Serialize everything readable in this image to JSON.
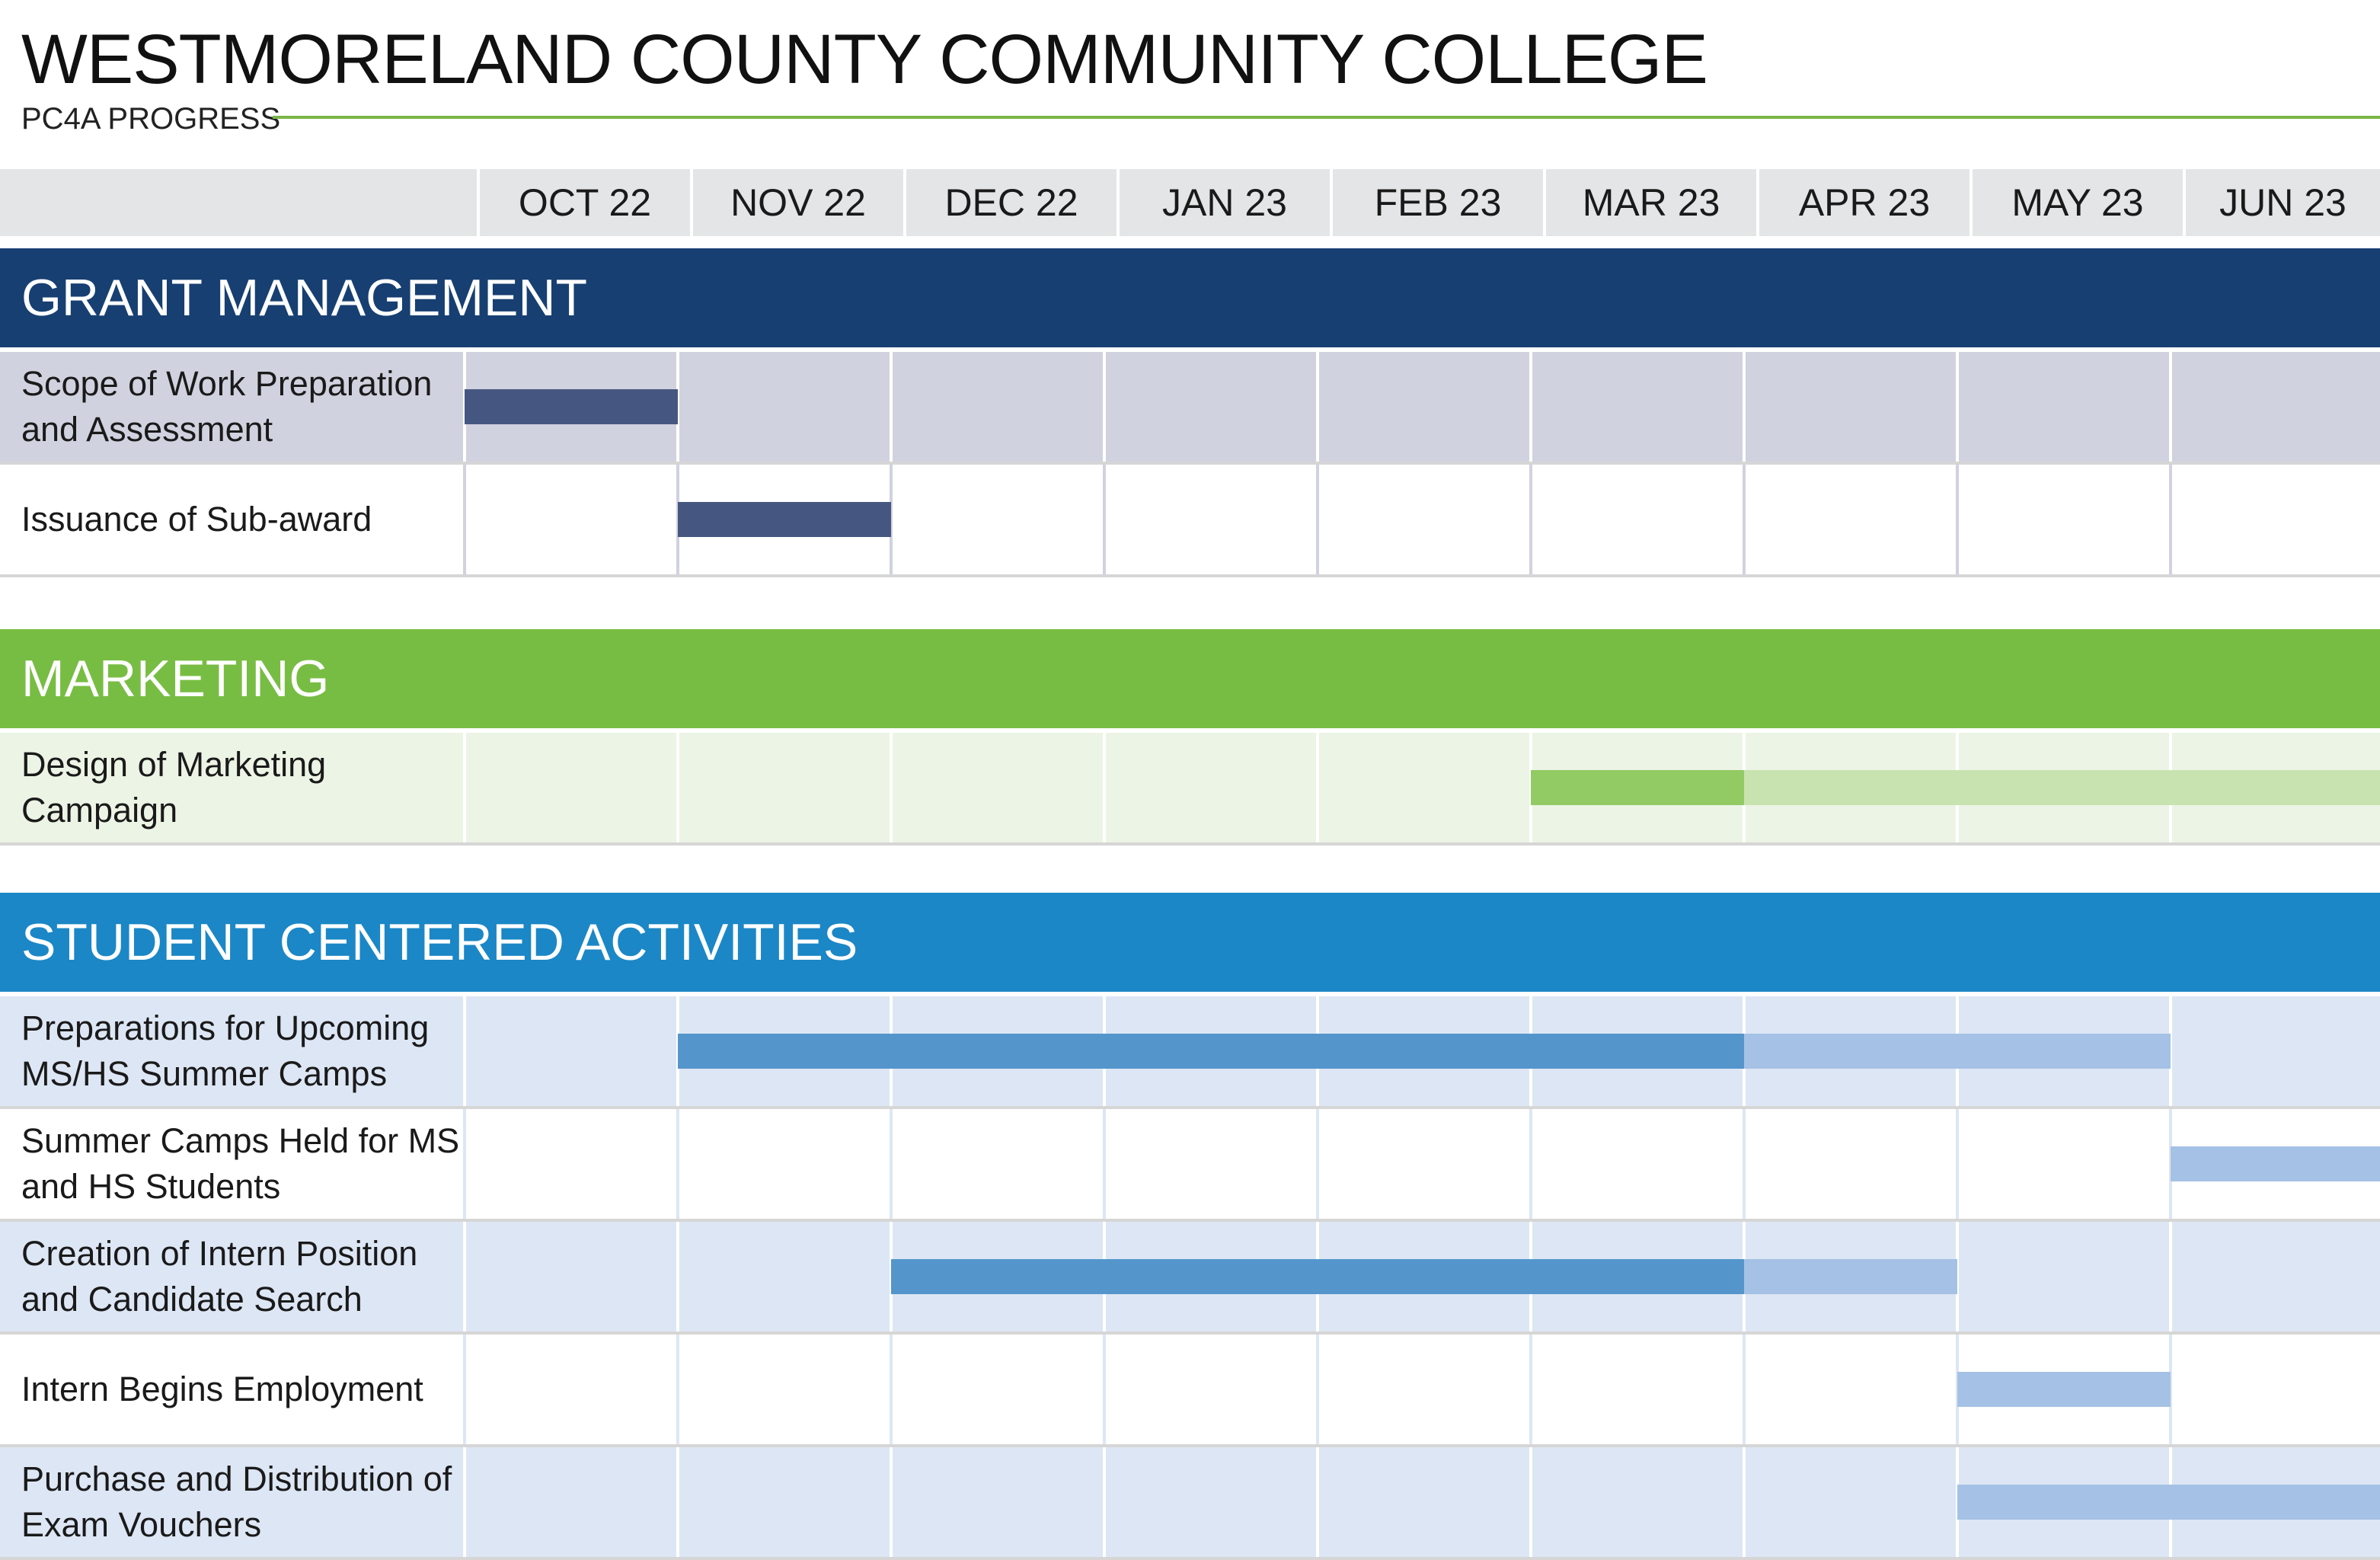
{
  "title": "WESTMORELAND COUNTY COMMUNITY COLLEGE",
  "subtitle": "PC4A PROGRESS",
  "colors": {
    "accent_rule": "#7ab648",
    "header_bg": "#e4e5e6"
  },
  "chart_data": {
    "type": "gantt",
    "months": [
      "OCT 22",
      "NOV 22",
      "DEC 22",
      "JAN 23",
      "FEB 23",
      "MAR 23",
      "APR 23",
      "MAY 23",
      "JUN 23"
    ],
    "sections": [
      {
        "name": "GRANT MANAGEMENT",
        "header_color": "#173f72",
        "row_colors": [
          "#d1d2df",
          "#ffffff"
        ],
        "grid_color": "#ffffff",
        "grid_color_alt": "#d1d2df",
        "tasks": [
          {
            "label": "Scope of Work Preparation and Assessment",
            "bars": [
              {
                "start": 0,
                "end": 1,
                "color": "#455781"
              }
            ]
          },
          {
            "label": "Issuance of Sub-award",
            "bars": [
              {
                "start": 1,
                "end": 2,
                "color": "#455781"
              }
            ]
          }
        ]
      },
      {
        "name": "MARKETING",
        "header_color": "#78bd43",
        "row_colors": [
          "#ecf4e5"
        ],
        "grid_color": "#ffffff",
        "grid_color_alt": "#ecf4e5",
        "tasks": [
          {
            "label": "Design of Marketing Campaign",
            "bars": [
              {
                "start": 5,
                "end": 6,
                "color": "#92ca63"
              },
              {
                "start": 6,
                "end": 9,
                "color": "#c8e3b0"
              }
            ]
          }
        ]
      },
      {
        "name": "STUDENT CENTERED ACTIVITIES",
        "header_color": "#1b87c6",
        "row_colors": [
          "#dde6f4",
          "#ffffff"
        ],
        "grid_color": "#ffffff",
        "grid_color_alt": "#dde6f4",
        "tasks": [
          {
            "label": "Preparations for Upcoming MS/HS Summer Camps",
            "bars": [
              {
                "start": 1,
                "end": 6,
                "color": "#5495cc"
              },
              {
                "start": 6,
                "end": 8,
                "color": "#a5c1e5"
              }
            ]
          },
          {
            "label": "Summer Camps Held for MS and HS Students",
            "bars": [
              {
                "start": 8,
                "end": 9,
                "color": "#a5c1e5"
              }
            ]
          },
          {
            "label": "Creation of Intern Position and Candidate Search",
            "bars": [
              {
                "start": 2,
                "end": 6,
                "color": "#5495cc"
              },
              {
                "start": 6,
                "end": 7,
                "color": "#a5c1e5"
              }
            ]
          },
          {
            "label": "Intern Begins Employment",
            "bars": [
              {
                "start": 7,
                "end": 8,
                "color": "#a5c1e5"
              }
            ]
          },
          {
            "label": "Purchase and Distribution of Exam Vouchers",
            "bars": [
              {
                "start": 7,
                "end": 9,
                "color": "#a5c1e5"
              }
            ]
          }
        ]
      }
    ]
  }
}
